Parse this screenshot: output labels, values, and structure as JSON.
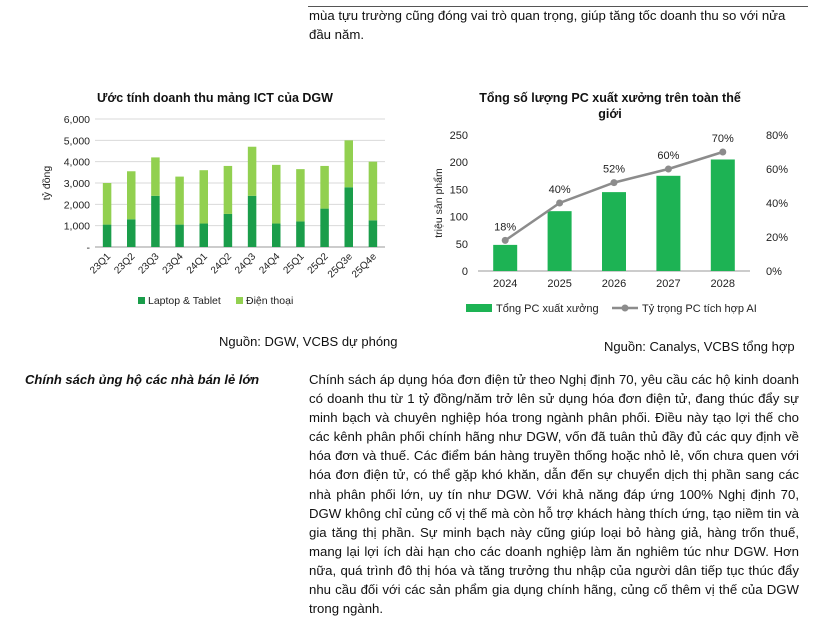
{
  "intro_text": "mùa tựu trường cũng đóng vai trò quan trọng, giúp tăng tốc doanh thu so với nửa đầu năm.",
  "chart_data": [
    {
      "type": "bar",
      "stacked": true,
      "title": "Ước tính doanh thu mảng ICT của DGW",
      "ylabel": "tỷ đồng",
      "xlabel": "",
      "ylim": [
        0,
        6000
      ],
      "yticks": [
        "-",
        "1,000",
        "2,000",
        "3,000",
        "4,000",
        "5,000",
        "6,000"
      ],
      "categories": [
        "23Q1",
        "23Q2",
        "23Q3",
        "23Q4",
        "24Q1",
        "24Q2",
        "24Q3",
        "24Q4",
        "25Q1",
        "25Q2",
        "25Q3e",
        "25Q4e"
      ],
      "series": [
        {
          "name": "Laptop & Tablet",
          "color": "#1a9d4a",
          "values": [
            1050,
            1300,
            2400,
            1050,
            1100,
            1550,
            2400,
            1100,
            1200,
            1800,
            2800,
            1250
          ]
        },
        {
          "name": "Điện thoại",
          "color": "#92d050",
          "values": [
            1950,
            2250,
            1800,
            2250,
            2500,
            2250,
            2300,
            2750,
            2450,
            2000,
            2200,
            2750
          ]
        }
      ],
      "legend_position": "bottom",
      "grid": true
    },
    {
      "type": "bar+line",
      "title": "Tổng số lượng PC xuất xưởng trên toàn thế giới",
      "ylabel": "triệu sản phẩm",
      "xlabel": "",
      "ylim": [
        0,
        250
      ],
      "y2lim": [
        0,
        80
      ],
      "yticks": [
        "0",
        "50",
        "100",
        "150",
        "200",
        "250"
      ],
      "y2ticks": [
        "0%",
        "20%",
        "40%",
        "60%",
        "80%"
      ],
      "categories": [
        "2024",
        "2025",
        "2026",
        "2027",
        "2028"
      ],
      "series": [
        {
          "name": "Tổng PC xuất xưởng",
          "type": "bar",
          "color": "#1db354",
          "values": [
            48,
            110,
            145,
            175,
            205
          ]
        },
        {
          "name": "Tỷ trọng PC tích hợp AI",
          "type": "line",
          "axis": "y2",
          "color": "#8c8c8c",
          "values": [
            18,
            40,
            52,
            60,
            70
          ],
          "labels": [
            "18%",
            "40%",
            "52%",
            "60%",
            "70%"
          ]
        }
      ],
      "legend_position": "bottom",
      "grid": false
    }
  ],
  "source_left": "Nguồn: DGW, VCBS dự phóng",
  "source_right": "Nguồn: Canalys, VCBS tổng hợp",
  "section_heading": "Chính sách ủng hộ các nhà bán lẻ lớn",
  "section_body": "Chính sách áp dụng hóa đơn điện tử theo Nghị định 70, yêu cầu các hộ kinh doanh có doanh thu từ 1 tỷ đồng/năm trở lên sử dụng hóa đơn điện tử, đang thúc đẩy sự minh bạch và chuyên nghiệp hóa trong ngành phân phối. Điều này tạo lợi thế cho các kênh phân phối chính hãng như DGW, vốn đã tuân thủ đầy đủ các quy định về hóa đơn và thuế. Các điểm bán hàng truyền thống hoặc nhỏ lẻ, vốn chưa quen với hóa đơn điện tử, có thể gặp khó khăn, dẫn đến sự chuyển dịch thị phần sang các nhà phân phối lớn, uy tín như DGW. Với khả năng đáp ứng 100% Nghị định 70, DGW không chỉ củng cố vị thế mà còn hỗ trợ khách hàng thích ứng, tạo niềm tin và gia tăng thị phần. Sự minh bạch này cũng giúp loại bỏ hàng giả, hàng trốn thuế, mang lại lợi ích dài hạn cho các doanh nghiệp làm ăn nghiêm túc như DGW. Hơn nữa, quá trình đô thị hóa và tăng trưởng thu nhập của người dân tiếp tục thúc đẩy nhu cầu đối với các sản phẩm gia dụng chính hãng, củng cố thêm vị thế của DGW trong ngành."
}
